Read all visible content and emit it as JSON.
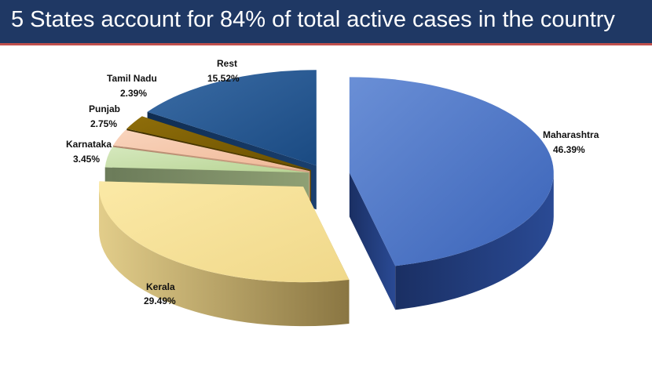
{
  "header": {
    "title": "5 States account for 84% of total active cases in the country"
  },
  "colors": {
    "title_bg": "#1f3864",
    "title_underline": "#c0504d"
  },
  "chart_data": {
    "type": "pie",
    "title": "",
    "style": "3d-exploded",
    "slices": [
      {
        "label": "Maharashtra",
        "value": 46.39,
        "value_label": "46.39%",
        "color": "#4472c4"
      },
      {
        "label": "Kerala",
        "value": 29.49,
        "value_label": "29.49%",
        "color": "#f3dc93"
      },
      {
        "label": "Karnataka",
        "value": 3.45,
        "value_label": "3.45%",
        "color": "#c4dca4"
      },
      {
        "label": "Punjab",
        "value": 2.75,
        "value_label": "2.75%",
        "color": "#f5c5a8"
      },
      {
        "label": "Tamil Nadu",
        "value": 2.39,
        "value_label": "2.39%",
        "color": "#7f6000"
      },
      {
        "label": "Rest",
        "value": 15.52,
        "value_label": "15.52%",
        "color": "#1f5591"
      }
    ]
  }
}
